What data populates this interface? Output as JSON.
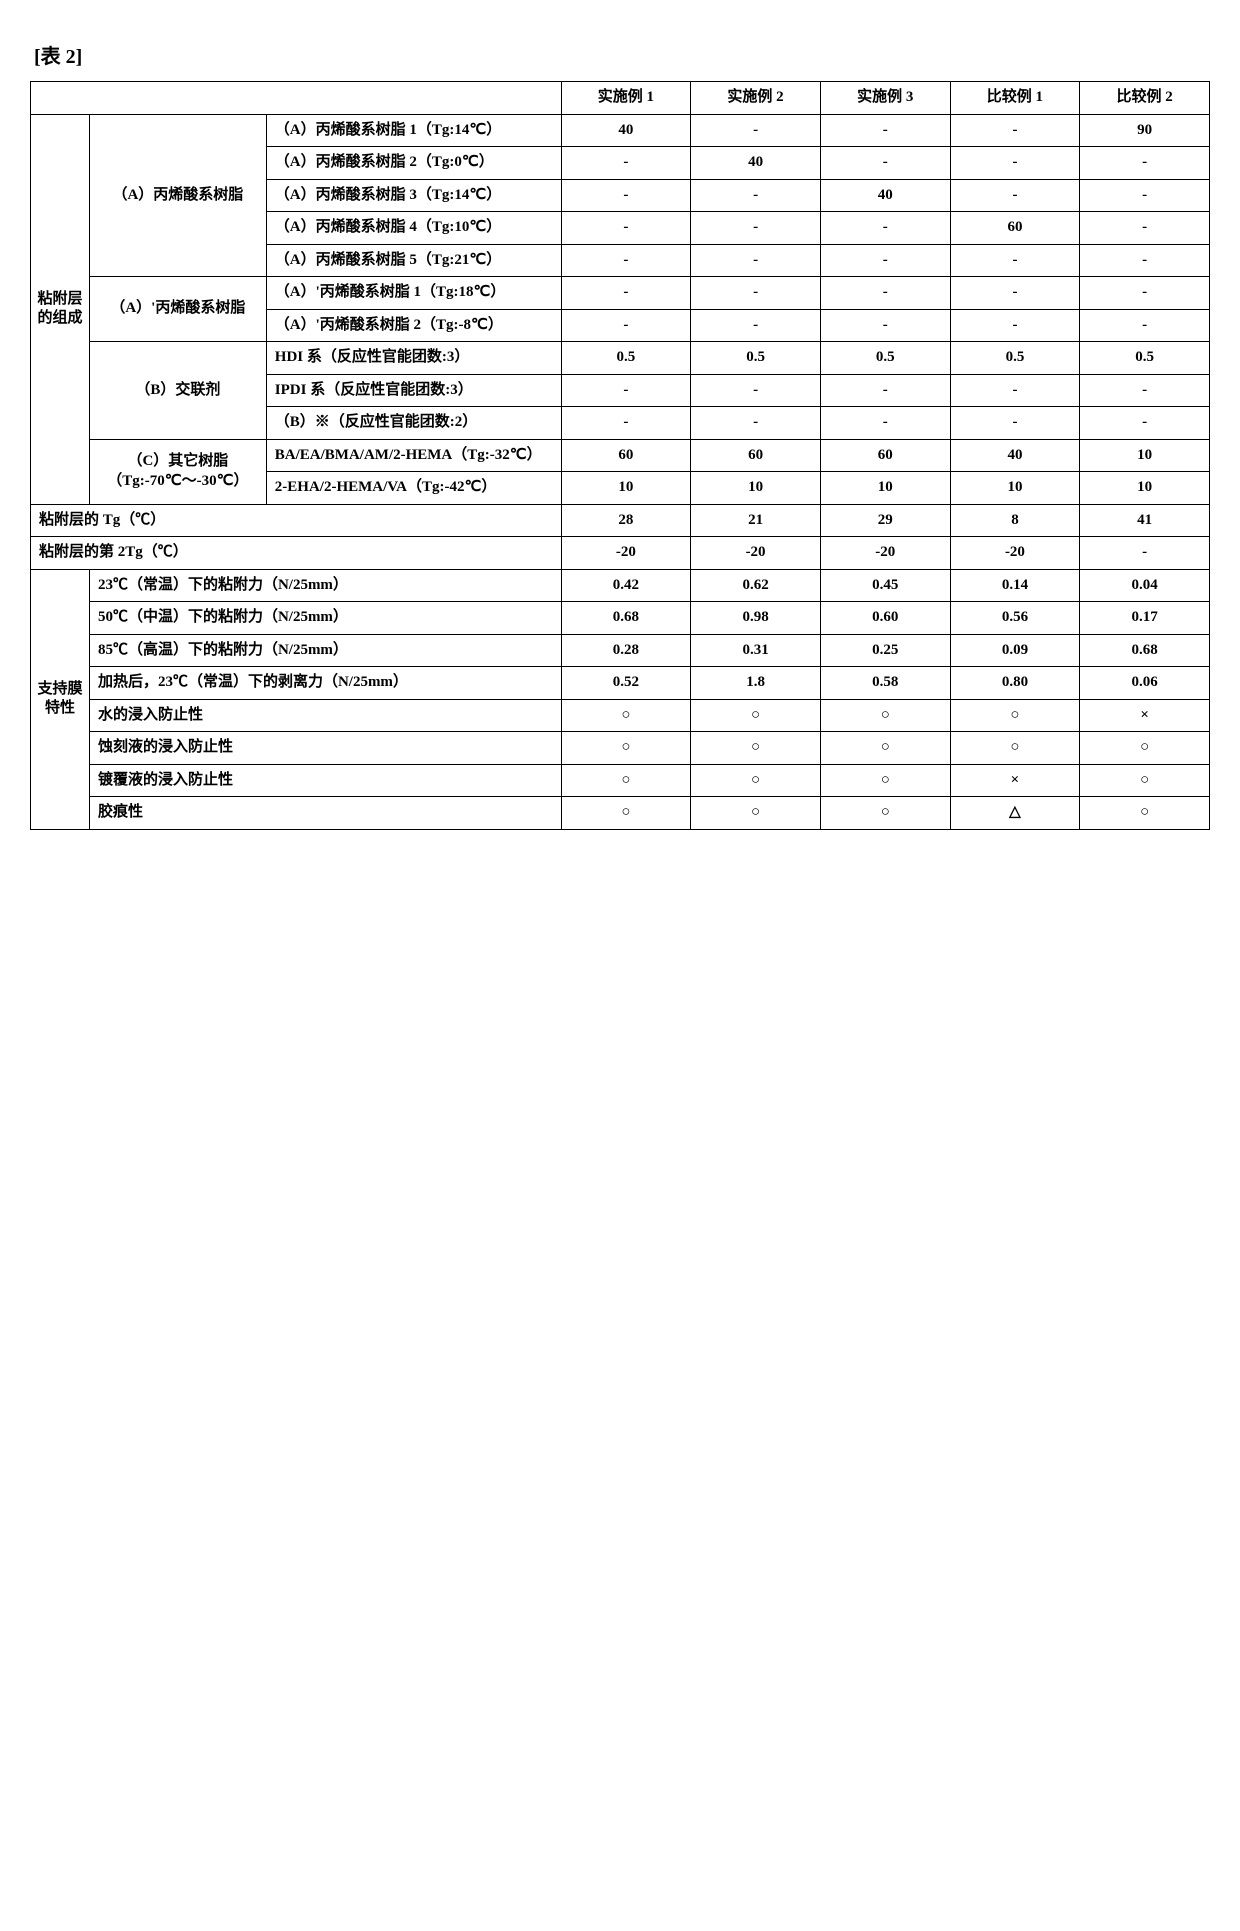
{
  "title": "[表 2]",
  "headers": {
    "h1": "实施例 1",
    "h2": "实施例 2",
    "h3": "实施例 3",
    "h4": "比较例 1",
    "h5": "比较例 2"
  },
  "section1": "粘附层的组成",
  "section2": "支持膜特性",
  "groupA": "（A）丙烯酸系树脂",
  "groupAprime": "（A）'丙烯酸系树脂",
  "groupB": "（B）交联剂",
  "groupC": "（C）其它树脂（Tg:-70℃～-30℃）",
  "rows": {
    "r0": {
      "label": "（A）丙烯酸系树脂 1（Tg:14℃）",
      "v": [
        "40",
        "-",
        "-",
        "-",
        "90"
      ]
    },
    "r1": {
      "label": "（A）丙烯酸系树脂 2（Tg:0℃）",
      "v": [
        "-",
        "40",
        "-",
        "-",
        "-"
      ]
    },
    "r2": {
      "label": "（A）丙烯酸系树脂 3（Tg:14℃）",
      "v": [
        "-",
        "-",
        "40",
        "-",
        "-"
      ]
    },
    "r3": {
      "label": "（A）丙烯酸系树脂 4（Tg:10℃）",
      "v": [
        "-",
        "-",
        "-",
        "60",
        "-"
      ]
    },
    "r4": {
      "label": "（A）丙烯酸系树脂 5（Tg:21℃）",
      "v": [
        "-",
        "-",
        "-",
        "-",
        "-"
      ]
    },
    "r5": {
      "label": "（A）'丙烯酸系树脂 1（Tg:18℃）",
      "v": [
        "-",
        "-",
        "-",
        "-",
        "-"
      ]
    },
    "r6": {
      "label": "（A）'丙烯酸系树脂 2（Tg:-8℃）",
      "v": [
        "-",
        "-",
        "-",
        "-",
        "-"
      ]
    },
    "r7": {
      "label": "HDI 系（反应性官能团数:3）",
      "v": [
        "0.5",
        "0.5",
        "0.5",
        "0.5",
        "0.5"
      ]
    },
    "r8": {
      "label": "IPDI 系（反应性官能团数:3）",
      "v": [
        "-",
        "-",
        "-",
        "-",
        "-"
      ]
    },
    "r9": {
      "label": "（B）※（反应性官能团数:2）",
      "v": [
        "-",
        "-",
        "-",
        "-",
        "-"
      ]
    },
    "r10": {
      "label": "BA/EA/BMA/AM/2-HEMA（Tg:-32℃）",
      "v": [
        "60",
        "60",
        "60",
        "40",
        "10"
      ]
    },
    "r11": {
      "label": "2-EHA/2-HEMA/VA（Tg:-42℃）",
      "v": [
        "10",
        "10",
        "10",
        "10",
        "10"
      ]
    },
    "r12": {
      "label": "粘附层的 Tg（℃）",
      "v": [
        "28",
        "21",
        "29",
        "8",
        "41"
      ]
    },
    "r13": {
      "label": "粘附层的第 2Tg（℃）",
      "v": [
        "-20",
        "-20",
        "-20",
        "-20",
        "-"
      ]
    },
    "r14": {
      "label": "23℃（常温）下的粘附力（N/25mm）",
      "v": [
        "0.42",
        "0.62",
        "0.45",
        "0.14",
        "0.04"
      ]
    },
    "r15": {
      "label": "50℃（中温）下的粘附力（N/25mm）",
      "v": [
        "0.68",
        "0.98",
        "0.60",
        "0.56",
        "0.17"
      ]
    },
    "r16": {
      "label": "85℃（高温）下的粘附力（N/25mm）",
      "v": [
        "0.28",
        "0.31",
        "0.25",
        "0.09",
        "0.68"
      ]
    },
    "r17": {
      "label": "加热后，23℃（常温）下的剥离力（N/25mm）",
      "v": [
        "0.52",
        "1.8",
        "0.58",
        "0.80",
        "0.06"
      ]
    },
    "r18": {
      "label": "水的浸入防止性",
      "v": [
        "○",
        "○",
        "○",
        "○",
        "×"
      ]
    },
    "r19": {
      "label": "蚀刻液的浸入防止性",
      "v": [
        "○",
        "○",
        "○",
        "○",
        "○"
      ]
    },
    "r20": {
      "label": "镀覆液的浸入防止性",
      "v": [
        "○",
        "○",
        "○",
        "×",
        "○"
      ]
    },
    "r21": {
      "label": "胶痕性",
      "v": [
        "○",
        "○",
        "○",
        "△",
        "○"
      ]
    }
  }
}
